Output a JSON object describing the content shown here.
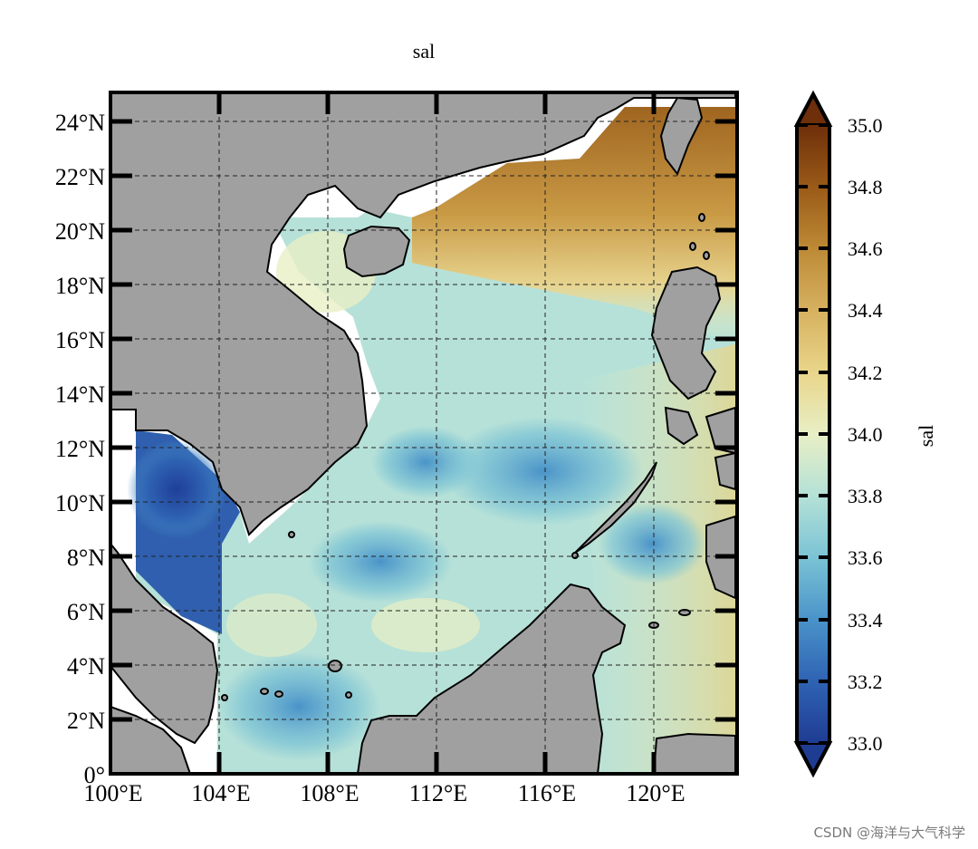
{
  "title": "sal",
  "colorbar": {
    "label": "sal",
    "ticks": [
      "35.0",
      "34.8",
      "34.6",
      "34.4",
      "34.2",
      "34.0",
      "33.8",
      "33.6",
      "33.4",
      "33.2",
      "33.0"
    ],
    "min": 33.0,
    "max": 35.0,
    "colors": [
      "#1f3c93",
      "#2f63b3",
      "#4a93c9",
      "#7bc3d5",
      "#b4e1d7",
      "#e8efc5",
      "#e9d58a",
      "#d6b160",
      "#bd8a36",
      "#9a5a18",
      "#6e2f0a"
    ]
  },
  "map": {
    "lat_labels": [
      "24°N",
      "22°N",
      "20°N",
      "18°N",
      "16°N",
      "14°N",
      "12°N",
      "10°N",
      "8°N",
      "6°N",
      "4°N",
      "2°N",
      "0°"
    ],
    "lon_labels": [
      "100°E",
      "104°E",
      "108°E",
      "112°E",
      "116°E",
      "120°E"
    ],
    "lon_range": [
      100,
      123
    ],
    "lat_range": [
      0,
      25
    ],
    "land_color": "#a0a0a0",
    "grid": "dashed"
  },
  "watermark": "CSDN @海洋与大气科学"
}
